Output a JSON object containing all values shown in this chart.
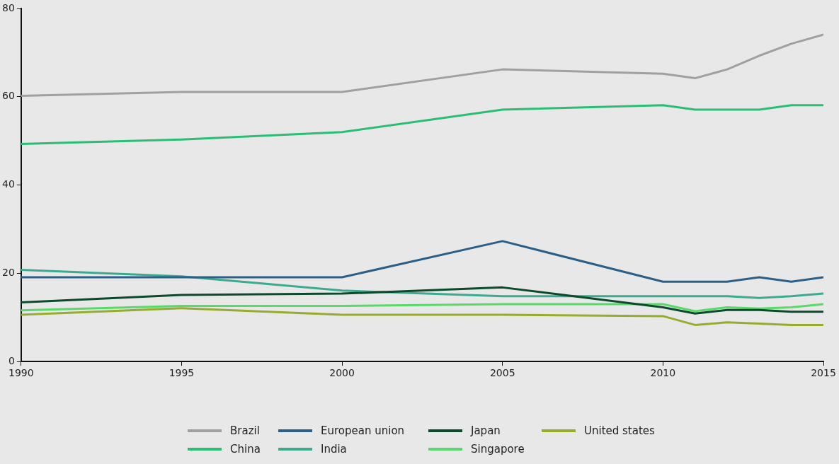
{
  "chart_data": {
    "type": "line",
    "x": [
      1990,
      1995,
      2000,
      2005,
      2010,
      2011,
      2012,
      2013,
      2014,
      2015
    ],
    "xlim": [
      1990,
      2015
    ],
    "xticks": [
      1990,
      1995,
      2000,
      2005,
      2010,
      2015
    ],
    "ylim": [
      0,
      80
    ],
    "yticks": [
      0,
      20,
      40,
      60,
      80
    ],
    "grid": false,
    "legend": "bottom",
    "marker": "none",
    "line_style": "solid",
    "series": [
      {
        "name": "Brazil",
        "color": "#a0a0a0",
        "values": [
          60.2,
          61.1,
          61.1,
          66.2,
          65.2,
          64.2,
          66.2,
          69.3,
          72,
          74.1
        ]
      },
      {
        "name": "European union",
        "color": "#2b5f87",
        "values": [
          19.1,
          19.1,
          19.1,
          27.3,
          18.1,
          18.1,
          18.1,
          19.1,
          18.1,
          19.1
        ]
      },
      {
        "name": "Japan",
        "color": "#0b4a2c",
        "values": [
          13.4,
          15.1,
          15.4,
          16.8,
          12.3,
          10.9,
          11.7,
          11.7,
          11.3,
          11.3
        ]
      },
      {
        "name": "United states",
        "color": "#95ac2e",
        "values": [
          10.6,
          12.1,
          10.6,
          10.6,
          10.3,
          8.3,
          8.9,
          8.6,
          8.3,
          8.3
        ]
      },
      {
        "name": "China",
        "color": "#2bbd74",
        "values": [
          49.3,
          50.3,
          52,
          57.1,
          58.1,
          57.1,
          57.1,
          57.1,
          58.1,
          58.1
        ]
      },
      {
        "name": "India",
        "color": "#3daa8f",
        "values": [
          20.8,
          19.3,
          16.1,
          14.8,
          14.8,
          14.8,
          14.8,
          14.4,
          14.8,
          15.4
        ]
      },
      {
        "name": "Singapore",
        "color": "#5ad96a",
        "values": [
          11.6,
          12.6,
          12.6,
          13,
          13,
          11.4,
          12.3,
          12,
          12.3,
          13
        ]
      }
    ]
  }
}
